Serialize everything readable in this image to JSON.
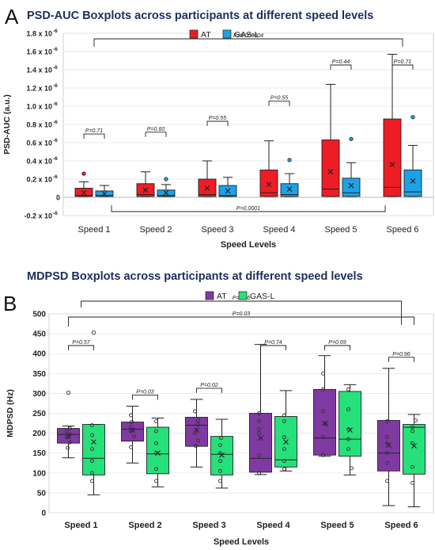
{
  "panels": [
    {
      "letter": "A",
      "title": "PSD-AUC Boxplots across participants at different speed levels"
    },
    {
      "letter": "B",
      "title": "MDPSD Boxplots across participants at different speed levels"
    }
  ],
  "colors": {
    "AT_A": "#ee1c25",
    "GAS_A": "#1ea1e6",
    "AT_B": "#7f3aa1",
    "GAS_B": "#26e07a"
  },
  "chart_data": [
    {
      "type": "boxplot",
      "title": "PSD-AUC Boxplots across participants at different speed levels",
      "xlabel": "Speed Levels",
      "ylabel": "PSD-AUC (a.u.)",
      "ylim": [
        -2e-07,
        1.8e-06
      ],
      "yticks": [
        -2e-07,
        0,
        2e-07,
        4e-07,
        6e-07,
        8e-07,
        1e-06,
        1.2e-06,
        1.4e-06,
        1.6e-06,
        1.8e-06
      ],
      "ytick_labels": [
        "-0.2 x 10",
        "0",
        "0.2 x 10",
        "0.4 x 10",
        "0.6 x 10",
        "0.8 x 10",
        "1.0 x 10",
        "1.2 x 10",
        "1.4 x 10",
        "1.6 x 10",
        "1.8 x 10"
      ],
      "ytick_exp": [
        "-6",
        "",
        "-6",
        "-6",
        "-6",
        "-6",
        "-6",
        "-6",
        "-6",
        "-6",
        "-6"
      ],
      "categories": [
        "Speed 1",
        "Speed 2",
        "Speed 3",
        "Speed 4",
        "Speed 5",
        "Speed 6"
      ],
      "legend": {
        "position": "top-right"
      },
      "series": [
        {
          "name": "AT",
          "boxes": [
            {
              "min": 1e-08,
              "q1": 1e-08,
              "median": 2e-08,
              "q3": 1e-07,
              "max": 1.7e-07,
              "mean": 5e-08,
              "outliers": [
                2.6e-07
              ]
            },
            {
              "min": 1e-08,
              "q1": 1e-08,
              "median": 3e-08,
              "q3": 1.5e-07,
              "max": 2.8e-07,
              "mean": 8e-08,
              "outliers": []
            },
            {
              "min": 1e-08,
              "q1": 1e-08,
              "median": 3e-08,
              "q3": 2e-07,
              "max": 4e-07,
              "mean": 1e-07,
              "outliers": []
            },
            {
              "min": 1e-08,
              "q1": 1e-08,
              "median": 5e-08,
              "q3": 3e-07,
              "max": 6.2e-07,
              "mean": 1.4e-07,
              "outliers": []
            },
            {
              "min": 1e-08,
              "q1": 1e-08,
              "median": 9e-08,
              "q3": 6.3e-07,
              "max": 1.24e-06,
              "mean": 2.8e-07,
              "outliers": []
            },
            {
              "min": 1e-08,
              "q1": 1e-08,
              "median": 1.1e-07,
              "q3": 8.6e-07,
              "max": 1.57e-06,
              "mean": 3.6e-07,
              "outliers": []
            }
          ]
        },
        {
          "name": "GAS-L",
          "boxes": [
            {
              "min": 1e-08,
              "q1": 1e-08,
              "median": 2e-08,
              "q3": 7e-08,
              "max": 1.3e-07,
              "mean": 4e-08,
              "outliers": []
            },
            {
              "min": 1e-08,
              "q1": 1e-08,
              "median": 2e-08,
              "q3": 8e-08,
              "max": 1.4e-07,
              "mean": 5e-08,
              "outliers": [
                2e-07
              ]
            },
            {
              "min": 1e-08,
              "q1": 1e-08,
              "median": 2e-08,
              "q3": 1.3e-07,
              "max": 2.2e-07,
              "mean": 7e-08,
              "outliers": []
            },
            {
              "min": 1e-08,
              "q1": 1e-08,
              "median": 3e-08,
              "q3": 1.5e-07,
              "max": 2.6e-07,
              "mean": 9e-08,
              "outliers": [
                4.1e-07
              ]
            },
            {
              "min": 1e-08,
              "q1": 1e-08,
              "median": 5e-08,
              "q3": 2.1e-07,
              "max": 3.8e-07,
              "mean": 1.3e-07,
              "outliers": [
                6.4e-07
              ]
            },
            {
              "min": 1e-08,
              "q1": 1e-08,
              "median": 6e-08,
              "q3": 3e-07,
              "max": 5.7e-07,
              "mean": 1.8e-07,
              "outliers": [
                8.8e-07
              ]
            }
          ]
        }
      ],
      "pairwise_p": [
        "P=0.71",
        "P=0.60",
        "P=0.55",
        "P=0.55",
        "P=0.44",
        "P=0.71"
      ],
      "brackets": [
        {
          "label": "P=0.000004",
          "from": 0,
          "to": 5,
          "position": "above"
        },
        {
          "label": "P=0.0001",
          "from": 0,
          "to": 5,
          "position": "below"
        }
      ]
    },
    {
      "type": "boxplot",
      "title": "MDPSD Boxplots across participants at different speed levels",
      "xlabel": "Speed Levels",
      "ylabel": "MDPSD (Hz)",
      "ylim": [
        0,
        500
      ],
      "yticks": [
        0,
        50,
        100,
        150,
        200,
        250,
        300,
        350,
        400,
        450,
        500
      ],
      "categories": [
        "Speed 1",
        "Speed 2",
        "Speed 3",
        "Speed 4",
        "Speed 5",
        "Speed 6"
      ],
      "legend": {
        "position": "top-center"
      },
      "series": [
        {
          "name": "AT",
          "boxes": [
            {
              "min": 138,
              "q1": 175,
              "median": 197,
              "q3": 212,
              "max": 218,
              "mean": 192,
              "outliers": [
                302
              ],
              "points": [
                163,
                177,
                190,
                197,
                205,
                212
              ]
            },
            {
              "min": 125,
              "q1": 180,
              "median": 210,
              "q3": 228,
              "max": 268,
              "mean": 208,
              "outliers": [],
              "points": [
                165,
                192,
                205,
                215,
                228,
                245
              ]
            },
            {
              "min": 115,
              "q1": 167,
              "median": 220,
              "q3": 240,
              "max": 285,
              "mean": 208,
              "outliers": [],
              "points": [
                168,
                182,
                200,
                222,
                232,
                255
              ]
            },
            {
              "min": 96,
              "q1": 102,
              "median": 137,
              "q3": 250,
              "max": 423,
              "mean": 188,
              "outliers": [],
              "points": [
                100,
                145,
                200,
                210,
                230,
                250
              ]
            },
            {
              "min": 142,
              "q1": 145,
              "median": 188,
              "q3": 310,
              "max": 395,
              "mean": 225,
              "outliers": [],
              "points": [
                145,
                190,
                222,
                255,
                310,
                350
              ]
            },
            {
              "min": 18,
              "q1": 105,
              "median": 150,
              "q3": 232,
              "max": 363,
              "mean": 170,
              "outliers": [],
              "points": [
                80,
                125,
                150,
                175,
                190,
                230
              ]
            }
          ]
        },
        {
          "name": "GAS-L",
          "boxes": [
            {
              "min": 45,
              "q1": 95,
              "median": 137,
              "q3": 222,
              "max": 222,
              "mean": 178,
              "outliers": [
                453
              ],
              "points": [
                80,
                100,
                130,
                160,
                195,
                220
              ]
            },
            {
              "min": 65,
              "q1": 98,
              "median": 148,
              "q3": 215,
              "max": 238,
              "mean": 150,
              "outliers": [],
              "points": [
                80,
                110,
                150,
                175,
                205,
                230
              ]
            },
            {
              "min": 62,
              "q1": 95,
              "median": 147,
              "q3": 192,
              "max": 235,
              "mean": 145,
              "outliers": [],
              "points": [
                80,
                105,
                130,
                150,
                170,
                188
              ]
            },
            {
              "min": 105,
              "q1": 115,
              "median": 133,
              "q3": 242,
              "max": 307,
              "mean": 178,
              "outliers": [],
              "points": [
                110,
                130,
                160,
                190,
                230,
                245
              ]
            },
            {
              "min": 95,
              "q1": 142,
              "median": 185,
              "q3": 305,
              "max": 322,
              "mean": 208,
              "outliers": [],
              "points": [
                112,
                160,
                185,
                210,
                260,
                310
              ]
            },
            {
              "min": 15,
              "q1": 97,
              "median": 215,
              "q3": 222,
              "max": 247,
              "mean": 168,
              "outliers": [],
              "points": [
                75,
                115,
                175,
                205,
                215,
                232
              ]
            }
          ]
        }
      ],
      "pairwise_p": [
        "P=0.57",
        "P=0.03",
        "P=0.02",
        "P=0.74",
        "P=0.69",
        "P=0.96"
      ],
      "brackets": [
        {
          "label": "P=0.26",
          "from": 0,
          "to": 5,
          "position": "above-outer"
        },
        {
          "label": "P=0.03",
          "from": 0,
          "to": 5,
          "position": "above-inner"
        }
      ]
    }
  ]
}
